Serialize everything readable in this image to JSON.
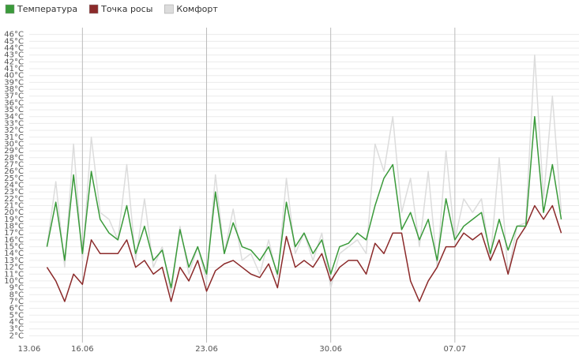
{
  "chart_data": {
    "type": "line",
    "x": [
      1,
      1.5,
      2,
      2.5,
      3,
      3.5,
      4,
      4.5,
      5,
      5.5,
      6,
      6.5,
      7,
      7.5,
      8,
      8.5,
      9,
      9.5,
      10,
      10.5,
      11,
      11.5,
      12,
      12.5,
      13,
      13.5,
      14,
      14.5,
      15,
      15.5,
      16,
      16.5,
      17,
      17.5,
      18,
      18.5,
      19,
      19.5,
      20,
      20.5,
      21,
      21.5,
      22,
      22.5,
      23,
      23.5,
      24,
      24.5,
      25,
      25.5,
      26,
      26.5,
      27,
      27.5,
      28,
      28.5,
      29,
      29.5,
      30
    ],
    "series": [
      {
        "name": "Комфорт",
        "color": "#dcdcdc",
        "values": [
          15,
          24.5,
          12,
          30,
          13,
          31,
          20,
          19,
          16,
          27,
          13,
          22,
          12,
          15,
          8,
          18,
          11,
          15,
          10,
          25.5,
          14,
          20.5,
          13,
          14,
          11,
          16,
          10.5,
          25,
          14,
          17,
          13,
          17,
          9,
          14,
          15,
          16,
          14,
          30,
          26,
          34,
          20,
          25,
          15,
          26,
          12,
          29,
          16,
          22,
          20,
          22,
          13,
          28,
          11,
          18,
          18.5,
          43,
          22,
          37,
          20
        ]
      },
      {
        "name": "Точка росы",
        "color": "#8b2a2a",
        "values": [
          12,
          10,
          7,
          11,
          9.5,
          16,
          14,
          14,
          14,
          16,
          12,
          13,
          11,
          12,
          7,
          12,
          10,
          13,
          8.5,
          11.5,
          12.5,
          13,
          12,
          11,
          10.5,
          12.5,
          9,
          16.5,
          12,
          13,
          12,
          14,
          10,
          12,
          13,
          13,
          11,
          15.5,
          14,
          17,
          17,
          10,
          7,
          10,
          12,
          15,
          15,
          17,
          16,
          17,
          13,
          16,
          11,
          16,
          18,
          21,
          19,
          21,
          17
        ]
      },
      {
        "name": "Температура",
        "color": "#3a9a3a",
        "values": [
          15,
          21.5,
          13,
          25.5,
          14,
          26,
          19,
          17,
          16,
          21,
          14,
          18,
          13,
          14.5,
          9,
          17.5,
          12,
          15,
          11,
          23,
          14,
          18.5,
          15,
          14.5,
          13,
          15,
          11,
          21.5,
          15,
          17,
          14,
          16,
          11,
          15,
          15.5,
          17,
          16,
          21,
          25,
          27,
          17.5,
          20,
          16,
          19,
          13,
          22,
          16,
          18,
          19,
          20,
          14,
          19,
          14.5,
          18,
          18,
          34,
          20,
          27,
          19
        ]
      }
    ],
    "xlim": [
      0,
      31
    ],
    "xticks": [
      {
        "value": 0,
        "label": "13.06"
      },
      {
        "value": 3,
        "label": "16.06"
      },
      {
        "value": 10,
        "label": "23.06"
      },
      {
        "value": 17,
        "label": "30.06"
      },
      {
        "value": 24,
        "label": "07.07"
      }
    ],
    "ylim": [
      1,
      47
    ],
    "yticks": [
      {
        "value": 2,
        "label": "2°C"
      },
      {
        "value": 3,
        "label": "3°C"
      },
      {
        "value": 4,
        "label": "4°C"
      },
      {
        "value": 5,
        "label": "5°C"
      },
      {
        "value": 6,
        "label": "6°C"
      },
      {
        "value": 7,
        "label": "7°C"
      },
      {
        "value": 8,
        "label": "8°C"
      },
      {
        "value": 9,
        "label": "9°C"
      },
      {
        "value": 10,
        "label": "10°C"
      },
      {
        "value": 11,
        "label": "11°C"
      },
      {
        "value": 12,
        "label": "12°C"
      },
      {
        "value": 13,
        "label": "13°C"
      },
      {
        "value": 14,
        "label": "14°C"
      },
      {
        "value": 15,
        "label": "15°C"
      },
      {
        "value": 16,
        "label": "16°C"
      },
      {
        "value": 17,
        "label": "17°C"
      },
      {
        "value": 18,
        "label": "18°C"
      },
      {
        "value": 19,
        "label": "19°C"
      },
      {
        "value": 20,
        "label": "20°C"
      },
      {
        "value": 21,
        "label": "21°C"
      },
      {
        "value": 22,
        "label": "22°C"
      },
      {
        "value": 23,
        "label": "23°C"
      },
      {
        "value": 24,
        "label": "24°C"
      },
      {
        "value": 25,
        "label": "25°C"
      },
      {
        "value": 26,
        "label": "26°C"
      },
      {
        "value": 27,
        "label": "27°C"
      },
      {
        "value": 28,
        "label": "28°C"
      },
      {
        "value": 29,
        "label": "29°C"
      },
      {
        "value": 30,
        "label": "30°C"
      },
      {
        "value": 31,
        "label": "31°C"
      },
      {
        "value": 32,
        "label": "32°C"
      },
      {
        "value": 33,
        "label": "33°C"
      },
      {
        "value": 34,
        "label": "34°C"
      },
      {
        "value": 35,
        "label": "35°C"
      },
      {
        "value": 36,
        "label": "36°C"
      },
      {
        "value": 37,
        "label": "37°C"
      },
      {
        "value": 38,
        "label": "38°C"
      },
      {
        "value": 39,
        "label": "39°C"
      },
      {
        "value": 40,
        "label": "40°C"
      },
      {
        "value": 41,
        "label": "41°C"
      },
      {
        "value": 42,
        "label": "42°C"
      },
      {
        "value": 43,
        "label": "43°C"
      },
      {
        "value": 44,
        "label": "44°C"
      },
      {
        "value": 45,
        "label": "45°C"
      },
      {
        "value": 46,
        "label": "46°C"
      }
    ],
    "grid": true,
    "legend": "top-left"
  }
}
